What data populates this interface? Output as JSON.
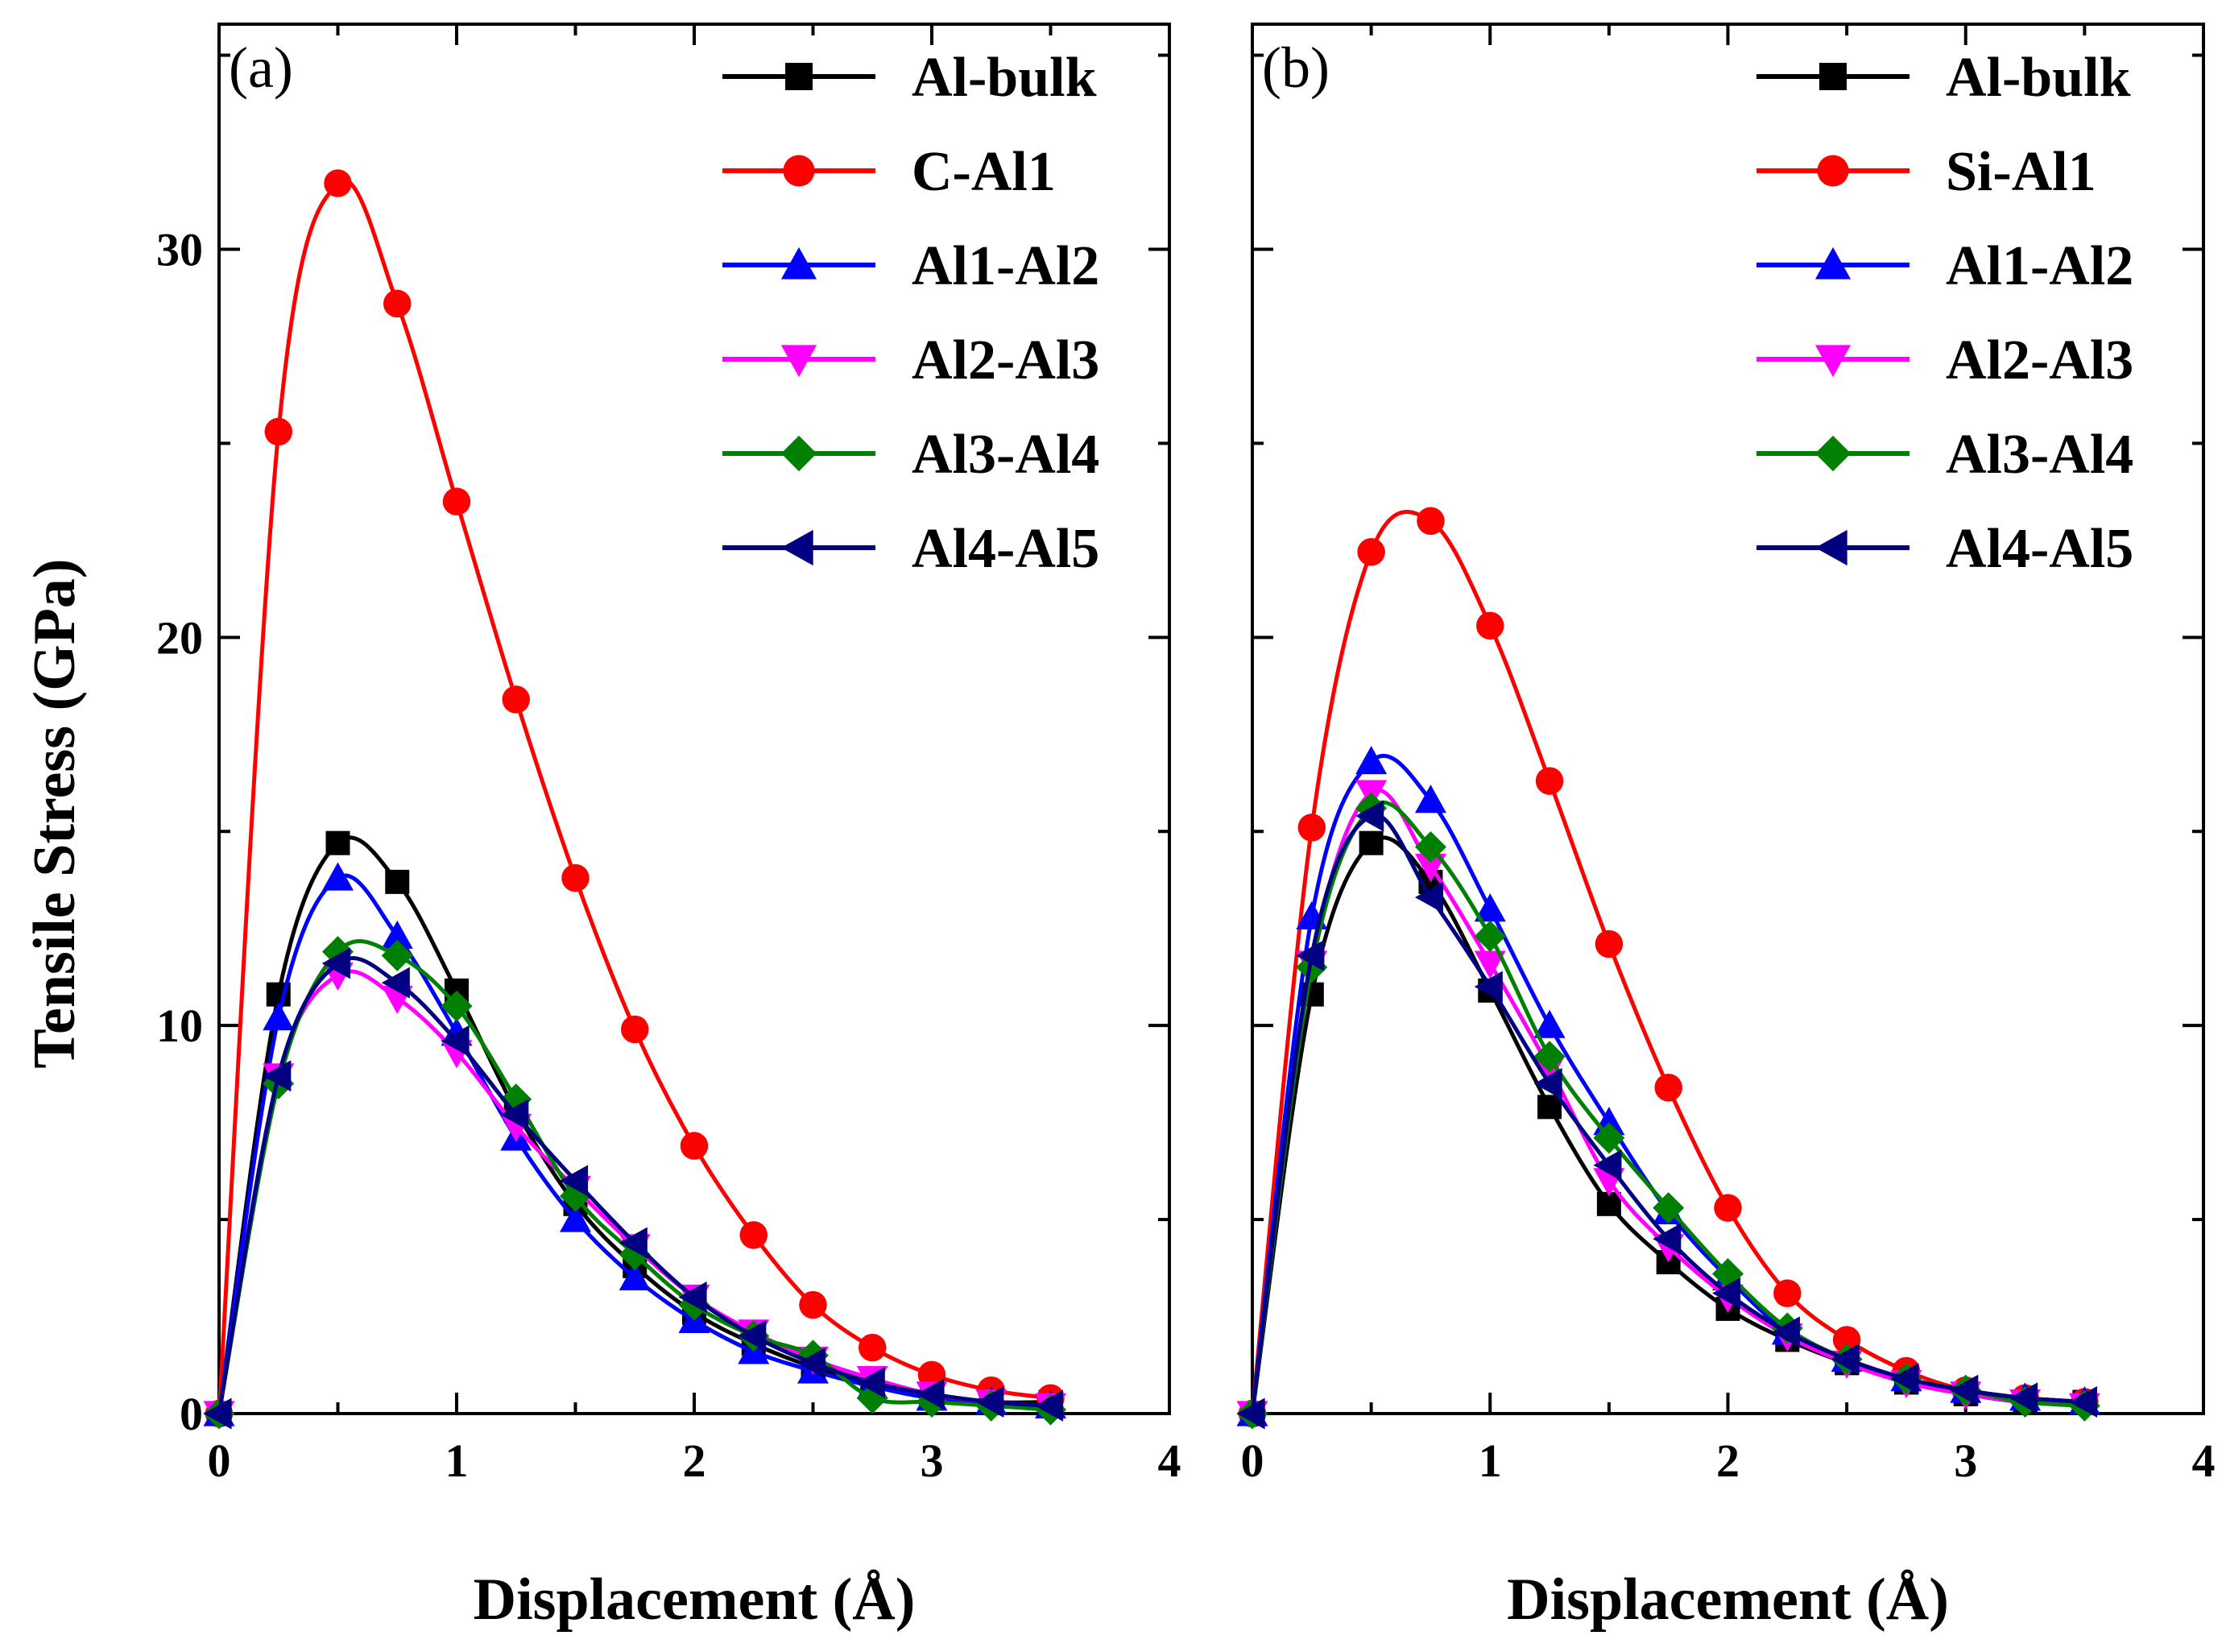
{
  "chart_data": [
    {
      "type": "line",
      "panel_label": "(a)",
      "xlabel": "Displacement (Å)",
      "ylabel": "Tensile Stress (GPa)",
      "xlim": [
        0,
        4
      ],
      "ylim": [
        0,
        35.8
      ],
      "xticks": [
        "0",
        "1",
        "2",
        "3",
        "4"
      ],
      "yticks": [
        "0",
        "10",
        "20",
        "30"
      ],
      "legend_position": "top-right",
      "series": [
        {
          "name": "Al-bulk",
          "color": "#000000",
          "marker": "square",
          "x": [
            0,
            0.25,
            0.5,
            0.75,
            1.0,
            1.25,
            1.5,
            1.75,
            2.0,
            2.25,
            2.5,
            2.75,
            3.0,
            3.25,
            3.5
          ],
          "y": [
            0,
            10.8,
            14.7,
            13.7,
            10.9,
            7.8,
            5.4,
            3.8,
            2.6,
            1.8,
            1.2,
            0.8,
            0.5,
            0.3,
            0.3
          ]
        },
        {
          "name": "C-Al1",
          "color": "#ff0000",
          "marker": "circle",
          "x": [
            0,
            0.25,
            0.5,
            0.75,
            1.0,
            1.25,
            1.5,
            1.75,
            2.0,
            2.25,
            2.5,
            2.75,
            3.0,
            3.25,
            3.5
          ],
          "y": [
            0,
            25.3,
            31.7,
            28.6,
            23.5,
            18.4,
            13.8,
            9.9,
            6.9,
            4.6,
            2.8,
            1.7,
            1.0,
            0.6,
            0.4
          ]
        },
        {
          "name": "Al1-Al2",
          "color": "#0000ff",
          "marker": "triangle-up",
          "x": [
            0,
            0.25,
            0.5,
            0.75,
            1.0,
            1.25,
            1.5,
            1.75,
            2.0,
            2.25,
            2.5,
            2.75,
            3.0,
            3.25,
            3.5
          ],
          "y": [
            0,
            10.2,
            13.8,
            12.3,
            9.8,
            7.1,
            5.0,
            3.5,
            2.4,
            1.6,
            1.1,
            0.7,
            0.4,
            0.3,
            0.2
          ]
        },
        {
          "name": "Al2-Al3",
          "color": "#ff00ff",
          "marker": "triangle-down",
          "x": [
            0,
            0.25,
            0.5,
            0.75,
            1.0,
            1.25,
            1.5,
            1.75,
            2.0,
            2.25,
            2.5,
            2.75,
            3.0,
            3.25,
            3.5
          ],
          "y": [
            0,
            8.7,
            11.3,
            10.7,
            9.3,
            7.4,
            5.8,
            4.3,
            3.0,
            2.1,
            1.4,
            0.9,
            0.5,
            0.3,
            0.2
          ]
        },
        {
          "name": "Al3-Al4",
          "color": "#008000",
          "marker": "diamond",
          "x": [
            0,
            0.25,
            0.5,
            0.75,
            1.0,
            1.25,
            1.5,
            1.75,
            2.0,
            2.25,
            2.5,
            2.75,
            3.0,
            3.25,
            3.5
          ],
          "y": [
            0,
            8.5,
            11.9,
            11.8,
            10.5,
            8.1,
            5.6,
            4.1,
            2.8,
            2.0,
            1.5,
            0.4,
            0.3,
            0.2,
            0.1
          ]
        },
        {
          "name": "Al4-Al5",
          "color": "#000080",
          "marker": "triangle-left",
          "x": [
            0,
            0.25,
            0.5,
            0.75,
            1.0,
            1.25,
            1.5,
            1.75,
            2.0,
            2.25,
            2.5,
            2.75,
            3.0,
            3.25,
            3.5
          ],
          "y": [
            0,
            8.7,
            11.6,
            11.1,
            9.6,
            7.7,
            6.0,
            4.4,
            3.0,
            2.0,
            1.3,
            0.8,
            0.5,
            0.3,
            0.2
          ]
        }
      ]
    },
    {
      "type": "line",
      "panel_label": "(b)",
      "xlabel": "Displacement (Å)",
      "ylabel": "",
      "xlim": [
        0,
        4
      ],
      "ylim": [
        0,
        35.8
      ],
      "xticks": [
        "0",
        "1",
        "2",
        "3",
        "4"
      ],
      "yticks": [],
      "legend_position": "top-right",
      "series": [
        {
          "name": "Al-bulk",
          "color": "#000000",
          "marker": "square",
          "x": [
            0,
            0.25,
            0.5,
            0.75,
            1.0,
            1.25,
            1.5,
            1.75,
            2.0,
            2.25,
            2.5,
            2.75,
            3.0,
            3.25,
            3.5
          ],
          "y": [
            0,
            10.8,
            14.7,
            13.7,
            10.9,
            7.9,
            5.4,
            3.9,
            2.7,
            1.9,
            1.3,
            0.8,
            0.5,
            0.3,
            0.3
          ]
        },
        {
          "name": "Si-Al1",
          "color": "#ff0000",
          "marker": "circle",
          "x": [
            0,
            0.25,
            0.5,
            0.75,
            1.0,
            1.25,
            1.5,
            1.75,
            2.0,
            2.25,
            2.5,
            2.75,
            3.0,
            3.25,
            3.5
          ],
          "y": [
            0,
            15.1,
            22.2,
            23.0,
            20.3,
            16.3,
            12.1,
            8.4,
            5.3,
            3.1,
            1.9,
            1.1,
            0.6,
            0.4,
            0.3
          ]
        },
        {
          "name": "Al1-Al2",
          "color": "#0000ff",
          "marker": "triangle-up",
          "x": [
            0,
            0.25,
            0.5,
            0.75,
            1.0,
            1.25,
            1.5,
            1.75,
            2.0,
            2.25,
            2.5,
            2.75,
            3.0,
            3.25,
            3.5
          ],
          "y": [
            0,
            12.8,
            16.8,
            15.8,
            13.0,
            10.0,
            7.5,
            5.2,
            3.5,
            2.1,
            1.4,
            0.9,
            0.6,
            0.4,
            0.3
          ]
        },
        {
          "name": "Al2-Al3",
          "color": "#ff00ff",
          "marker": "triangle-down",
          "x": [
            0,
            0.25,
            0.5,
            0.75,
            1.0,
            1.25,
            1.5,
            1.75,
            2.0,
            2.25,
            2.5,
            2.75,
            3.0,
            3.25,
            3.5
          ],
          "y": [
            0,
            11.6,
            16.0,
            14.1,
            11.6,
            8.9,
            6.0,
            4.3,
            3.0,
            2.0,
            1.3,
            0.8,
            0.5,
            0.3,
            0.2
          ]
        },
        {
          "name": "Al3-Al4",
          "color": "#008000",
          "marker": "diamond",
          "x": [
            0,
            0.25,
            0.5,
            0.75,
            1.0,
            1.25,
            1.5,
            1.75,
            2.0,
            2.25,
            2.5,
            2.75,
            3.0,
            3.25,
            3.5
          ],
          "y": [
            0,
            11.5,
            15.6,
            14.6,
            12.3,
            9.2,
            7.1,
            5.3,
            3.6,
            2.2,
            1.4,
            0.9,
            0.6,
            0.3,
            0.2
          ]
        },
        {
          "name": "Al4-Al5",
          "color": "#000080",
          "marker": "triangle-left",
          "x": [
            0,
            0.25,
            0.5,
            0.75,
            1.0,
            1.25,
            1.5,
            1.75,
            2.0,
            2.25,
            2.5,
            2.75,
            3.0,
            3.25,
            3.5
          ],
          "y": [
            0,
            11.8,
            15.4,
            13.3,
            11.0,
            8.5,
            6.4,
            4.5,
            3.1,
            2.1,
            1.4,
            0.9,
            0.6,
            0.4,
            0.3
          ]
        }
      ]
    }
  ]
}
